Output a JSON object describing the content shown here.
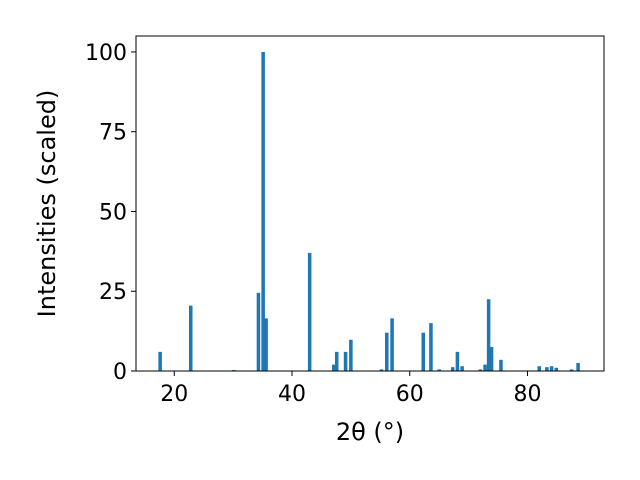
{
  "chart_data": {
    "type": "bar",
    "xlabel": "2θ (°)",
    "ylabel": "Intensities (scaled)",
    "xlim": [
      13.5,
      93
    ],
    "ylim": [
      0,
      105
    ],
    "xticks": [
      20,
      40,
      60,
      80
    ],
    "yticks": [
      0,
      25,
      50,
      75,
      100
    ],
    "bar_width": 0.6,
    "color": "#1f77b4",
    "grid": false,
    "x": [
      17.6,
      22.8,
      30.1,
      34.3,
      35.1,
      35.6,
      43.0,
      47.1,
      47.6,
      49.1,
      50.0,
      55.2,
      56.1,
      57.0,
      62.3,
      63.6,
      65.0,
      67.3,
      68.1,
      68.9,
      72.0,
      72.8,
      73.4,
      73.9,
      75.5,
      82.0,
      83.3,
      84.1,
      84.9,
      87.5,
      88.6
    ],
    "values": [
      6,
      20.5,
      0.3,
      24.5,
      100,
      16.5,
      37,
      2,
      6,
      6,
      9.8,
      0.5,
      12,
      16.5,
      12,
      15,
      0.5,
      1.2,
      6,
      1.5,
      0.5,
      2,
      22.5,
      7.5,
      3.5,
      1.5,
      1.2,
      1.5,
      1,
      0.5,
      2.5
    ]
  }
}
